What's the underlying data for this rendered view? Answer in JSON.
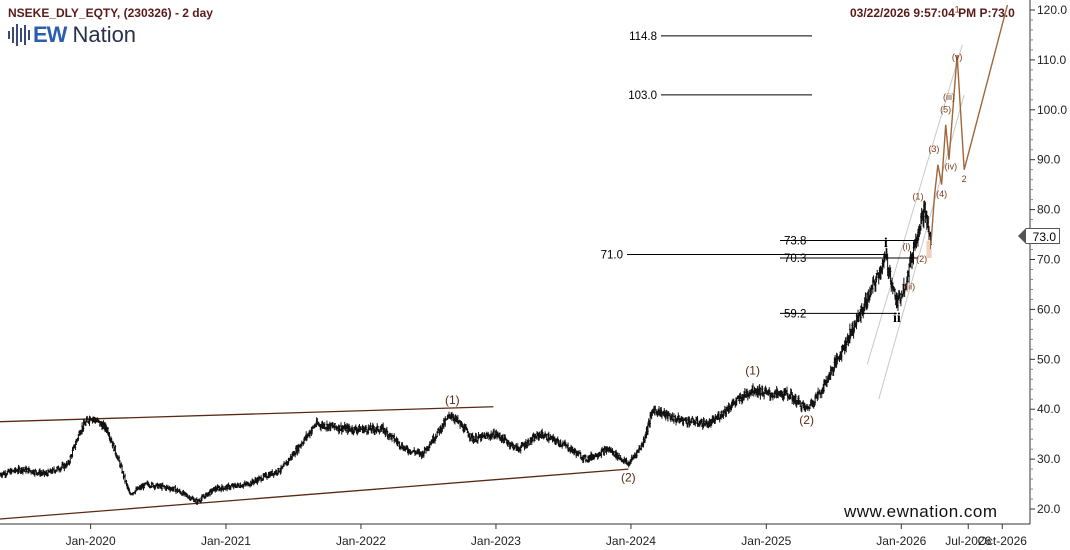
{
  "header": {
    "symbol_label": "NSEKE_DLY_EQTY, (230326) - 2 day",
    "timestamp": "03/22/2026 9:57:04 PM",
    "last_price": "P:73.0"
  },
  "logo": {
    "ew": "EW",
    "nation": "Nation"
  },
  "website": "www.ewnation.com",
  "price_tag": "73.0",
  "colors": {
    "price_bars": "#111111",
    "wave_labels": "#5a2a14",
    "projection": "#a0663a",
    "channel": "#c8c8c8",
    "triangle": "#5a2a14",
    "axis": "#333333",
    "header": "#5a1a1a",
    "logo_blue": "#2b5fae"
  },
  "chart_data": {
    "type": "ohlc_bar",
    "y_axis": {
      "side": "right",
      "range": [
        17,
        122
      ],
      "ticks": [
        20.0,
        30.0,
        40.0,
        50.0,
        60.0,
        70.0,
        80.0,
        90.0,
        100.0,
        110.0,
        120.0
      ]
    },
    "x_axis": {
      "range": [
        "2019-05-01",
        "2026-12-15"
      ],
      "ticks": [
        "Jan-2020",
        "Jan-2021",
        "Jan-2022",
        "Jan-2023",
        "Jan-2024",
        "Jan-2025",
        "Jan-2026",
        "Jul-2026",
        "Oct-2026"
      ]
    },
    "tick_dates": [
      "2020-01-01",
      "2021-01-01",
      "2022-01-01",
      "2023-01-01",
      "2024-01-01",
      "2025-01-01",
      "2026-01-01",
      "2026-07-01",
      "2026-10-01"
    ],
    "price_path": [
      [
        "2019-05-01",
        27
      ],
      [
        "2019-07-01",
        28
      ],
      [
        "2019-09-01",
        27
      ],
      [
        "2019-11-01",
        29
      ],
      [
        "2019-12-05",
        36
      ],
      [
        "2020-01-01",
        38.5
      ],
      [
        "2020-02-15",
        36
      ],
      [
        "2020-03-20",
        29
      ],
      [
        "2020-04-15",
        23
      ],
      [
        "2020-06-01",
        25
      ],
      [
        "2020-08-15",
        24
      ],
      [
        "2020-10-15",
        21.5
      ],
      [
        "2020-12-01",
        24
      ],
      [
        "2021-03-01",
        25
      ],
      [
        "2021-06-01",
        28
      ],
      [
        "2021-09-01",
        37
      ],
      [
        "2021-12-01",
        36
      ],
      [
        "2022-03-01",
        36
      ],
      [
        "2022-05-01",
        32
      ],
      [
        "2022-06-15",
        31
      ],
      [
        "2022-09-01",
        39
      ],
      [
        "2022-11-01",
        34
      ],
      [
        "2023-01-01",
        35
      ],
      [
        "2023-03-01",
        32
      ],
      [
        "2023-05-01",
        35
      ],
      [
        "2023-07-01",
        33
      ],
      [
        "2023-09-01",
        30
      ],
      [
        "2023-11-01",
        32
      ],
      [
        "2023-12-25",
        29
      ],
      [
        "2024-02-01",
        33
      ],
      [
        "2024-03-01",
        40
      ],
      [
        "2024-05-01",
        38
      ],
      [
        "2024-08-01",
        37
      ],
      [
        "2024-10-01",
        41
      ],
      [
        "2024-11-25",
        44
      ],
      [
        "2025-01-10",
        43
      ],
      [
        "2025-03-01",
        43
      ],
      [
        "2025-04-20",
        40
      ],
      [
        "2025-06-01",
        44
      ],
      [
        "2025-08-01",
        53
      ],
      [
        "2025-10-01",
        62
      ],
      [
        "2025-11-20",
        70.5
      ],
      [
        "2025-12-20",
        61
      ],
      [
        "2026-01-15",
        66
      ],
      [
        "2026-02-15",
        76
      ],
      [
        "2026-03-05",
        80
      ],
      [
        "2026-03-22",
        73
      ]
    ],
    "horizontal_levels": [
      {
        "value": 114.8,
        "label": "114.8",
        "label_side": "left"
      },
      {
        "value": 103.0,
        "label": "103.0",
        "label_side": "left"
      },
      {
        "value": 73.8,
        "label": "73.8",
        "label_side": "right"
      },
      {
        "value": 71.0,
        "label": "71.0",
        "label_side": "left"
      },
      {
        "value": 70.3,
        "label": "70.3",
        "label_side": "right"
      },
      {
        "value": 59.2,
        "label": "59.2",
        "label_side": "right"
      }
    ],
    "triangle_lines": [
      {
        "from": [
          "2019-05-01",
          37.5
        ],
        "to": [
          "2022-12-25",
          40.5
        ]
      },
      {
        "from": [
          "2019-05-01",
          18
        ],
        "to": [
          "2023-12-25",
          28
        ]
      }
    ],
    "channel_lines": [
      {
        "from": [
          "2025-10-01",
          49
        ],
        "to": [
          "2026-06-15",
          113
        ]
      },
      {
        "from": [
          "2025-11-01",
          42
        ],
        "to": [
          "2026-06-20",
          103
        ]
      }
    ],
    "projection_path": [
      [
        "2026-03-22",
        73
      ],
      [
        "2026-04-01",
        83
      ],
      [
        "2026-04-10",
        89
      ],
      [
        "2026-04-20",
        85
      ],
      [
        "2026-05-01",
        97
      ],
      [
        "2026-05-10",
        90
      ],
      [
        "2026-06-01",
        111
      ],
      [
        "2026-06-20",
        88
      ],
      [
        "2026-10-15",
        121
      ]
    ],
    "wave_labels": [
      {
        "text": "(1)",
        "date": "2022-09-05",
        "price": 41.0,
        "style": "normal"
      },
      {
        "text": "(2)",
        "date": "2023-12-25",
        "price": 25.5,
        "style": "normal"
      },
      {
        "text": "(1)",
        "date": "2024-11-25",
        "price": 47.0,
        "style": "normal"
      },
      {
        "text": "(2)",
        "date": "2025-04-20",
        "price": 37.0,
        "style": "normal"
      },
      {
        "text": "i",
        "date": "2025-11-20",
        "price": 72.5,
        "style": "serif"
      },
      {
        "text": "ii",
        "date": "2025-12-20",
        "price": 57.5,
        "style": "serif"
      },
      {
        "text": "(1)",
        "date": "2026-02-15",
        "price": 82.0,
        "style": "small"
      },
      {
        "text": "(i)",
        "date": "2026-01-15",
        "price": 72.0,
        "style": "small"
      },
      {
        "text": "(ii)",
        "date": "2026-01-25",
        "price": 64.0,
        "style": "small"
      },
      {
        "text": "(2)",
        "date": "2026-02-25",
        "price": 69.5,
        "style": "small"
      },
      {
        "text": "(3)",
        "date": "2026-03-30",
        "price": 91.5,
        "style": "small"
      },
      {
        "text": "(4)",
        "date": "2026-04-20",
        "price": 82.5,
        "style": "small"
      },
      {
        "text": "(5)",
        "date": "2026-05-01",
        "price": 99.5,
        "style": "small"
      },
      {
        "text": "(iii)",
        "date": "2026-05-10",
        "price": 102.0,
        "style": "small"
      },
      {
        "text": "(iv)",
        "date": "2026-05-15",
        "price": 88.0,
        "style": "small"
      },
      {
        "text": "(v)",
        "date": "2026-06-01",
        "price": 110.0,
        "style": "small"
      },
      {
        "text": "1",
        "date": "2026-06-01",
        "price": 119.5,
        "style": "small"
      },
      {
        "text": "2",
        "date": "2026-06-20",
        "price": 85.5,
        "style": "small"
      }
    ]
  }
}
